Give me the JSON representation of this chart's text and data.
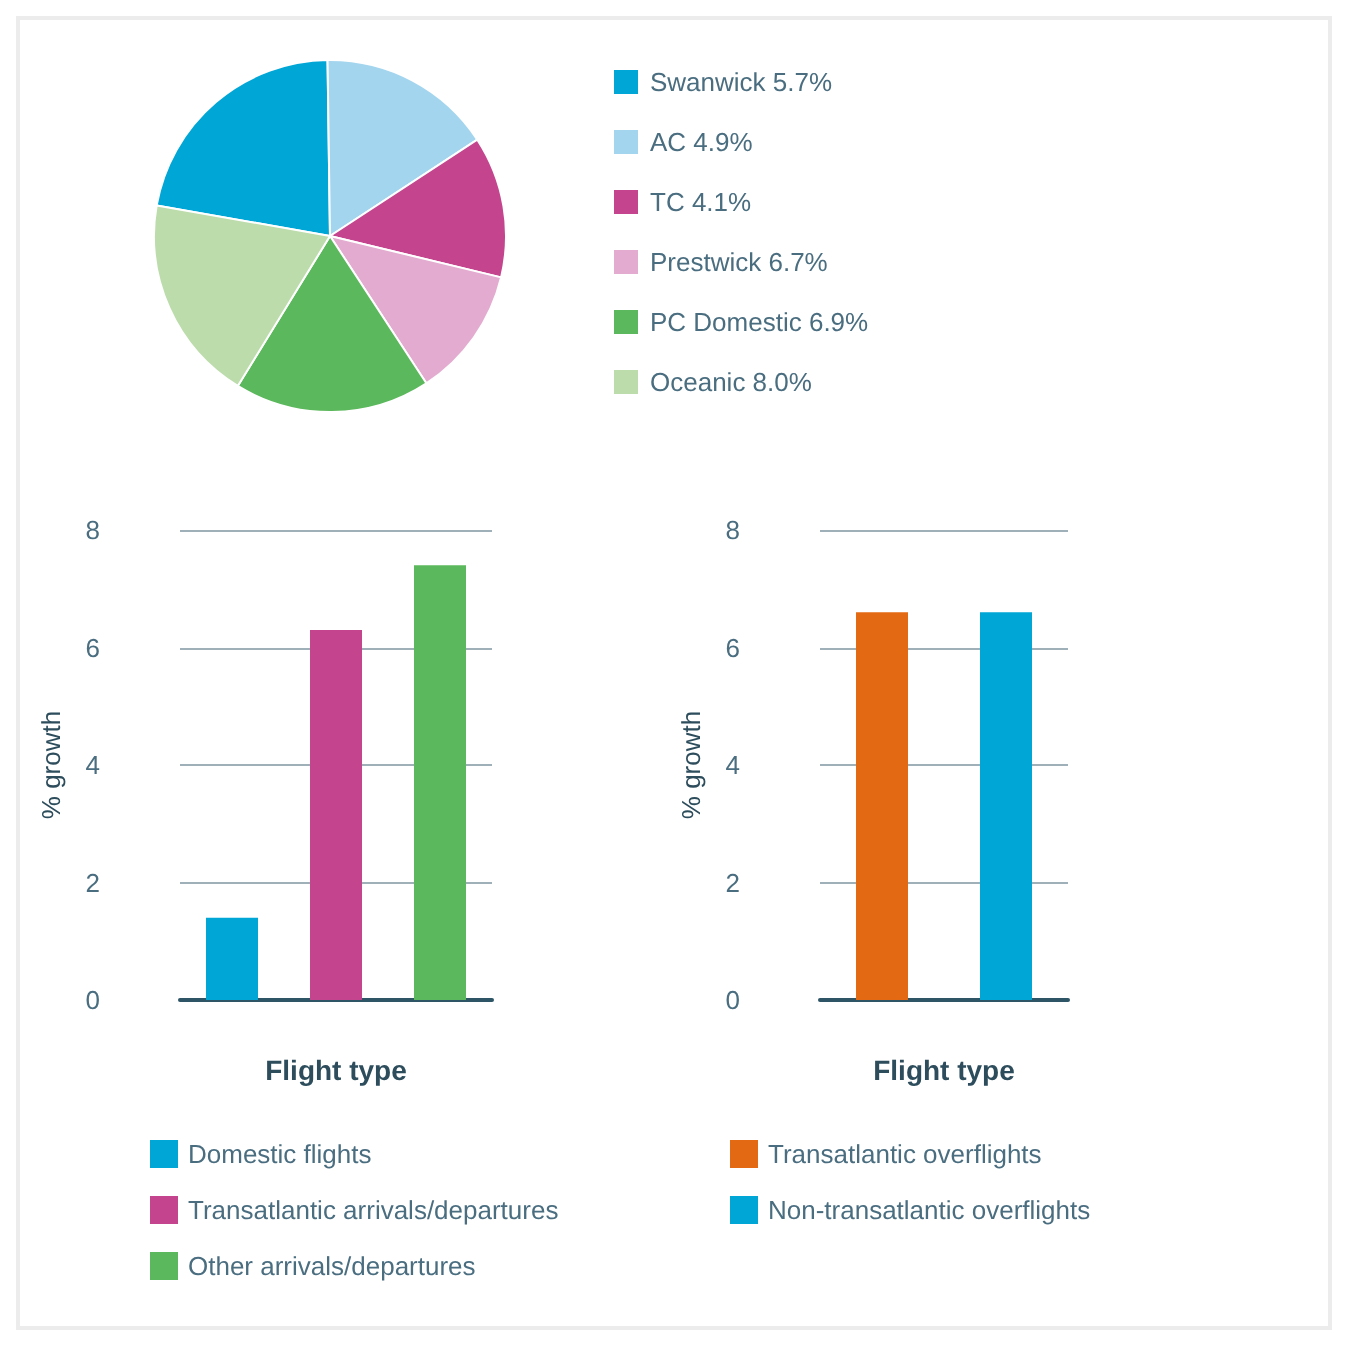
{
  "chart_data": [
    {
      "type": "pie",
      "categories": [
        "Swanwick 5.7%",
        "AC 4.9%",
        "TC 4.1%",
        "Prestwick 6.7%",
        "PC Domestic 6.9%",
        "Oceanic 8.0%"
      ],
      "values": [
        22,
        16,
        13,
        12,
        18,
        19
      ],
      "colors": [
        "#00a6d6",
        "#a3d5ef",
        "#c4448e",
        "#e3abcf",
        "#5cb85c",
        "#bcdcab"
      ],
      "legend": "right"
    },
    {
      "type": "bar",
      "categories": [
        null,
        null,
        null
      ],
      "xlabel": "Flight type",
      "ylabel": "% growth",
      "ylim": [
        0,
        8
      ],
      "yticks": [
        0,
        2,
        4,
        6,
        8
      ],
      "grid": "y",
      "legend": "bottom",
      "series": [
        {
          "name": "Domestic flights",
          "color": "#00a6d6",
          "values": [
            1.4,
            null,
            null
          ]
        },
        {
          "name": "Transatlantic arrivals/departures",
          "color": "#c4448e",
          "values": [
            null,
            6.3,
            null
          ]
        },
        {
          "name": "Other arrivals/departures",
          "color": "#5cb85c",
          "values": [
            null,
            null,
            7.4
          ]
        }
      ]
    },
    {
      "type": "bar",
      "categories": [
        null,
        null
      ],
      "xlabel": "Flight type",
      "ylabel": "% growth",
      "ylim": [
        0,
        8
      ],
      "yticks": [
        0,
        2,
        4,
        6,
        8
      ],
      "grid": "y",
      "legend": "bottom",
      "series": [
        {
          "name": "Transatlantic overflights",
          "color": "#e36a12",
          "values": [
            6.6,
            null
          ]
        },
        {
          "name": "Non-transatlantic overflights",
          "color": "#00a6d6",
          "values": [
            null,
            6.6
          ]
        }
      ]
    }
  ]
}
